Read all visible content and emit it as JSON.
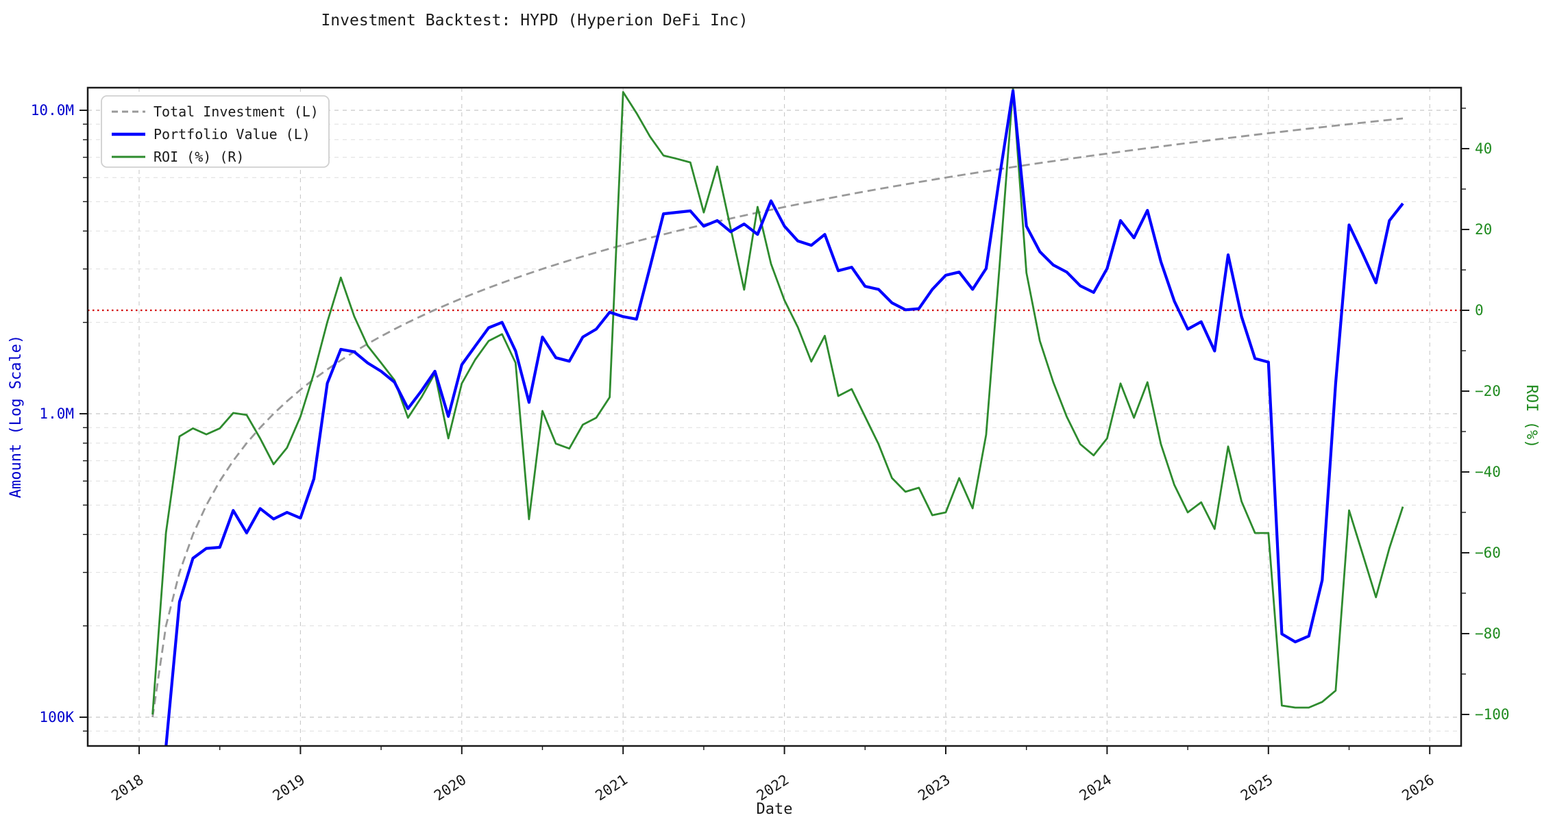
{
  "page": {
    "title": "Investment Backtest: HYPD (Hyperion DeFi Inc)"
  },
  "chart_data": {
    "type": "line",
    "title": "Investment Backtest: HYPD (Hyperion DeFi Inc)",
    "xlabel": "Date",
    "ylabel_left": "Amount (Log Scale)",
    "ylabel_right": "ROI (%)",
    "x_tick_labels": [
      "2018",
      "2019",
      "2020",
      "2021",
      "2022",
      "2023",
      "2024",
      "2025",
      "2026"
    ],
    "left_tick_labels": [
      "100K",
      "1.0M",
      "10.0M"
    ],
    "right_tick_labels": [
      "40",
      "20",
      "0",
      "−20",
      "−40",
      "−60",
      "−80",
      "−100"
    ],
    "legend_position": "upper-left",
    "grid": true,
    "zero_line_color": "#d40000",
    "colors": {
      "total_investment": "#999999",
      "portfolio_value": "#0000ff",
      "roi": "#2e8b2e",
      "grid_major": "#c8c8c8",
      "grid_minor": "#dedede",
      "spine": "#1a1a1a"
    },
    "legend": [
      {
        "label": "Total Investment (L)",
        "style": "dashed",
        "color": "#999999"
      },
      {
        "label": "Portfolio Value (L)",
        "style": "solid",
        "color": "#0000ff"
      },
      {
        "label": "ROI (%) (R)",
        "style": "solid",
        "color": "#2e8b2e"
      }
    ],
    "axes": {
      "x": {
        "min_year": 2017.681,
        "max_year": 2026.195,
        "major_ticks": [
          2018,
          2019,
          2020,
          2021,
          2022,
          2023,
          2024,
          2025,
          2026
        ]
      },
      "left": {
        "scale": "log",
        "unit": "USD",
        "min": 0.08,
        "max": 11.9,
        "major_ticks_M": [
          0.1,
          1,
          10
        ]
      },
      "right": {
        "scale": "linear",
        "unit": "%",
        "min": -107.8,
        "max": 55.1,
        "major_ticks": [
          40,
          20,
          0,
          -20,
          -40,
          -60,
          -80,
          -100
        ]
      }
    },
    "x_months": {
      "start": "2018-02",
      "step": "monthly",
      "count": 94,
      "end": "2025-11"
    },
    "series": [
      {
        "name": "Total Investment (L)",
        "axis": "left",
        "unit": "M USD",
        "values": [
          0.1,
          0.2,
          0.3,
          0.4,
          0.5,
          0.6,
          0.7,
          0.8,
          0.9,
          1.0,
          1.1,
          1.2,
          1.3,
          1.4,
          1.5,
          1.6,
          1.7,
          1.8,
          1.9,
          2.0,
          2.1,
          2.2,
          2.3,
          2.4,
          2.5,
          2.6,
          2.7,
          2.8,
          2.9,
          3.0,
          3.1,
          3.2,
          3.3,
          3.4,
          3.5,
          3.6,
          3.7,
          3.8,
          3.9,
          4.0,
          4.1,
          4.2,
          4.3,
          4.4,
          4.5,
          4.6,
          4.7,
          4.8,
          4.9,
          5.0,
          5.1,
          5.2,
          5.3,
          5.4,
          5.5,
          5.6,
          5.7,
          5.8,
          5.9,
          6.0,
          6.1,
          6.2,
          6.3,
          6.4,
          6.5,
          6.6,
          6.7,
          6.8,
          6.9,
          7.0,
          7.1,
          7.2,
          7.3,
          7.4,
          7.5,
          7.6,
          7.7,
          7.8,
          7.9,
          8.0,
          8.1,
          8.2,
          8.3,
          8.4,
          8.5,
          8.6,
          8.7,
          8.8,
          8.9,
          9.0,
          9.1,
          9.2,
          9.3,
          9.4
        ]
      },
      {
        "name": "Portfolio Value (L)",
        "axis": "left",
        "unit": "M USD",
        "values": [
          0.055,
          0.08,
          0.24,
          0.334,
          0.36,
          0.363,
          0.48,
          0.405,
          0.487,
          0.45,
          0.473,
          0.453,
          0.61,
          1.26,
          1.63,
          1.6,
          1.47,
          1.38,
          1.27,
          1.04,
          1.19,
          1.38,
          0.98,
          1.45,
          1.67,
          1.92,
          2.0,
          1.61,
          1.09,
          1.79,
          1.53,
          1.49,
          1.79,
          1.9,
          2.16,
          2.09,
          2.05,
          3.04,
          4.56,
          4.61,
          4.66,
          4.15,
          4.33,
          3.98,
          4.22,
          3.9,
          5.03,
          4.15,
          3.71,
          3.59,
          3.9,
          2.96,
          3.04,
          2.63,
          2.57,
          2.32,
          2.2,
          2.22,
          2.57,
          2.86,
          2.93,
          2.57,
          3.01,
          6.04,
          11.6,
          4.15,
          3.42,
          3.09,
          2.93,
          2.64,
          2.51,
          3.01,
          4.33,
          3.8,
          4.68,
          3.17,
          2.35,
          1.9,
          2.01,
          1.61,
          3.34,
          2.09,
          1.52,
          1.48,
          0.188,
          0.177,
          0.185,
          0.283,
          1.26,
          4.19,
          3.38,
          2.7,
          4.33,
          4.93
        ]
      },
      {
        "name": "ROI (%) (R)",
        "axis": "right",
        "unit": "%",
        "values": [
          -100,
          -55,
          -31.2,
          -29.2,
          -30.7,
          -29.2,
          -25.4,
          -25.9,
          -31.7,
          -38.1,
          -34,
          -26.3,
          -15.6,
          -2.9,
          8.1,
          -1.5,
          -8.8,
          -13,
          -17.3,
          -26.6,
          -21.5,
          -15.6,
          -31.7,
          -18.1,
          -12.2,
          -7.6,
          -5.9,
          -13,
          -51.7,
          -24.9,
          -33,
          -34.2,
          -28.3,
          -26.6,
          -21.5,
          54,
          48.8,
          43,
          38.3,
          37.5,
          36.6,
          24.2,
          35.6,
          20.3,
          5.1,
          25.6,
          11.5,
          2.5,
          -4.2,
          -12.7,
          -6.3,
          -21.2,
          -19.5,
          -26.3,
          -33.1,
          -41.5,
          -44.9,
          -43.9,
          -50.7,
          -50,
          -41.5,
          -49,
          -30.8,
          11,
          54.9,
          9.3,
          -7.6,
          -17.8,
          -26.3,
          -33.1,
          -35.9,
          -31.7,
          -18.1,
          -26.6,
          -17.8,
          -33.1,
          -43.2,
          -50,
          -47.5,
          -54.1,
          -33.7,
          -47.3,
          -55.1,
          -55.1,
          -97.8,
          -98.3,
          -98.3,
          -96.9,
          -94.1,
          -49.5,
          -60.2,
          -71,
          -58.8,
          -48.6
        ]
      }
    ]
  }
}
